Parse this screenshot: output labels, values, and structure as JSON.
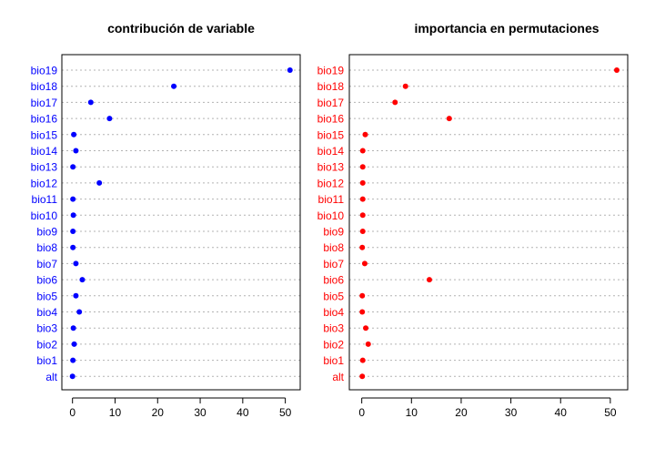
{
  "chart_data": [
    {
      "type": "dotchart",
      "title": "contribución de variable",
      "xlabel": "",
      "ylabel": "",
      "color": "#0000ff",
      "xlim": [
        -2.5,
        53.5
      ],
      "xticks": [
        0,
        10,
        20,
        30,
        40,
        50
      ],
      "grid": "dotted horizontal guides",
      "categories": [
        "bio19",
        "bio18",
        "bio17",
        "bio16",
        "bio15",
        "bio14",
        "bio13",
        "bio12",
        "bio11",
        "bio10",
        "bio9",
        "bio8",
        "bio7",
        "bio6",
        "bio5",
        "bio4",
        "bio3",
        "bio2",
        "bio1",
        "alt"
      ],
      "values": [
        51.1,
        23.8,
        4.3,
        8.7,
        0.3,
        0.8,
        0.1,
        6.3,
        0.1,
        0.2,
        0.1,
        0.1,
        0.8,
        2.3,
        0.8,
        1.6,
        0.2,
        0.4,
        0.1,
        0.0
      ]
    },
    {
      "type": "dotchart",
      "title": "importancia en permutaciones",
      "xlabel": "",
      "ylabel": "",
      "color": "#ff0000",
      "xlim": [
        -2.5,
        53.5
      ],
      "xticks": [
        0,
        10,
        20,
        30,
        40,
        50
      ],
      "grid": "dotted horizontal guides",
      "categories": [
        "bio19",
        "bio18",
        "bio17",
        "bio16",
        "bio15",
        "bio14",
        "bio13",
        "bio12",
        "bio11",
        "bio10",
        "bio9",
        "bio8",
        "bio7",
        "bio6",
        "bio5",
        "bio4",
        "bio3",
        "bio2",
        "bio1",
        "alt"
      ],
      "values": [
        51.3,
        8.8,
        6.7,
        17.6,
        0.7,
        0.2,
        0.2,
        0.2,
        0.2,
        0.2,
        0.2,
        0.1,
        0.6,
        13.6,
        0.1,
        0.1,
        0.8,
        1.3,
        0.2,
        0.1
      ]
    }
  ]
}
